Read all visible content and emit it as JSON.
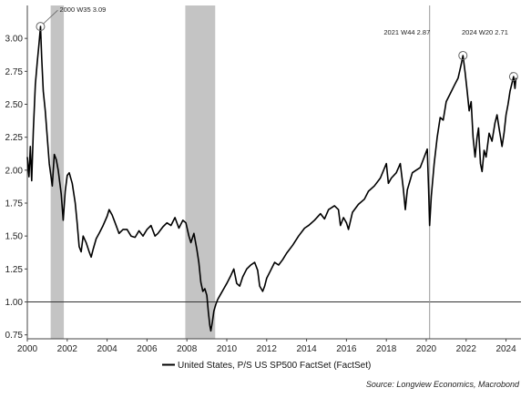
{
  "chart_data": {
    "type": "line",
    "title": "",
    "xlabel": "",
    "ylabel": "",
    "xlim": [
      2000,
      2024.75
    ],
    "ylim": [
      0.72,
      3.25
    ],
    "grid": false,
    "legend_position": "bottom-center",
    "x_ticks": [
      "2000",
      "2002",
      "2004",
      "2006",
      "2008",
      "2010",
      "2012",
      "2014",
      "2016",
      "2018",
      "2020",
      "2022",
      "2024"
    ],
    "y_ticks": [
      "0.75",
      "1.00",
      "1.25",
      "1.50",
      "1.75",
      "2.00",
      "2.25",
      "2.50",
      "2.75",
      "3.00"
    ],
    "reference_line": {
      "y": 1.0
    },
    "recessions": [
      {
        "start": 2001.17,
        "end": 2001.83
      },
      {
        "start": 2007.92,
        "end": 2009.42
      }
    ],
    "event_line": {
      "x": 2020.17
    },
    "series": [
      {
        "name": "United States, P/S US SP500 FactSet (FactSet)",
        "color": "#000000",
        "points": [
          [
            2000.0,
            2.1
          ],
          [
            2000.08,
            1.95
          ],
          [
            2000.15,
            2.18
          ],
          [
            2000.22,
            1.92
          ],
          [
            2000.3,
            2.3
          ],
          [
            2000.4,
            2.65
          ],
          [
            2000.5,
            2.82
          ],
          [
            2000.58,
            2.95
          ],
          [
            2000.66,
            3.09
          ],
          [
            2000.72,
            2.85
          ],
          [
            2000.8,
            2.6
          ],
          [
            2000.9,
            2.45
          ],
          [
            2001.0,
            2.25
          ],
          [
            2001.1,
            2.05
          ],
          [
            2001.25,
            1.88
          ],
          [
            2001.35,
            2.12
          ],
          [
            2001.45,
            2.08
          ],
          [
            2001.55,
            2.0
          ],
          [
            2001.7,
            1.82
          ],
          [
            2001.8,
            1.62
          ],
          [
            2001.9,
            1.84
          ],
          [
            2002.0,
            1.96
          ],
          [
            2002.1,
            1.98
          ],
          [
            2002.25,
            1.9
          ],
          [
            2002.4,
            1.75
          ],
          [
            2002.5,
            1.6
          ],
          [
            2002.6,
            1.42
          ],
          [
            2002.7,
            1.38
          ],
          [
            2002.8,
            1.5
          ],
          [
            2002.95,
            1.45
          ],
          [
            2003.1,
            1.38
          ],
          [
            2003.2,
            1.34
          ],
          [
            2003.3,
            1.4
          ],
          [
            2003.45,
            1.48
          ],
          [
            2003.6,
            1.52
          ],
          [
            2003.8,
            1.58
          ],
          [
            2004.0,
            1.65
          ],
          [
            2004.1,
            1.7
          ],
          [
            2004.25,
            1.66
          ],
          [
            2004.4,
            1.6
          ],
          [
            2004.6,
            1.52
          ],
          [
            2004.8,
            1.55
          ],
          [
            2005.0,
            1.55
          ],
          [
            2005.2,
            1.5
          ],
          [
            2005.4,
            1.49
          ],
          [
            2005.6,
            1.54
          ],
          [
            2005.8,
            1.5
          ],
          [
            2006.0,
            1.55
          ],
          [
            2006.2,
            1.58
          ],
          [
            2006.4,
            1.5
          ],
          [
            2006.55,
            1.52
          ],
          [
            2006.8,
            1.57
          ],
          [
            2007.0,
            1.6
          ],
          [
            2007.2,
            1.58
          ],
          [
            2007.4,
            1.64
          ],
          [
            2007.6,
            1.56
          ],
          [
            2007.8,
            1.62
          ],
          [
            2007.95,
            1.6
          ],
          [
            2008.1,
            1.5
          ],
          [
            2008.2,
            1.45
          ],
          [
            2008.35,
            1.52
          ],
          [
            2008.5,
            1.4
          ],
          [
            2008.6,
            1.3
          ],
          [
            2008.7,
            1.15
          ],
          [
            2008.8,
            1.08
          ],
          [
            2008.9,
            1.1
          ],
          [
            2009.0,
            1.05
          ],
          [
            2009.08,
            0.92
          ],
          [
            2009.15,
            0.82
          ],
          [
            2009.2,
            0.78
          ],
          [
            2009.28,
            0.85
          ],
          [
            2009.35,
            0.93
          ],
          [
            2009.45,
            0.98
          ],
          [
            2009.55,
            1.02
          ],
          [
            2009.7,
            1.06
          ],
          [
            2009.85,
            1.1
          ],
          [
            2010.0,
            1.14
          ],
          [
            2010.2,
            1.2
          ],
          [
            2010.35,
            1.25
          ],
          [
            2010.5,
            1.14
          ],
          [
            2010.65,
            1.12
          ],
          [
            2010.8,
            1.19
          ],
          [
            2011.0,
            1.25
          ],
          [
            2011.2,
            1.28
          ],
          [
            2011.4,
            1.3
          ],
          [
            2011.55,
            1.24
          ],
          [
            2011.65,
            1.12
          ],
          [
            2011.8,
            1.08
          ],
          [
            2011.9,
            1.12
          ],
          [
            2012.0,
            1.18
          ],
          [
            2012.2,
            1.24
          ],
          [
            2012.4,
            1.3
          ],
          [
            2012.6,
            1.28
          ],
          [
            2012.8,
            1.32
          ],
          [
            2013.0,
            1.37
          ],
          [
            2013.3,
            1.43
          ],
          [
            2013.6,
            1.5
          ],
          [
            2013.9,
            1.56
          ],
          [
            2014.1,
            1.58
          ],
          [
            2014.4,
            1.62
          ],
          [
            2014.7,
            1.67
          ],
          [
            2014.9,
            1.63
          ],
          [
            2015.1,
            1.7
          ],
          [
            2015.4,
            1.73
          ],
          [
            2015.6,
            1.7
          ],
          [
            2015.7,
            1.58
          ],
          [
            2015.85,
            1.64
          ],
          [
            2016.0,
            1.6
          ],
          [
            2016.1,
            1.55
          ],
          [
            2016.3,
            1.68
          ],
          [
            2016.6,
            1.74
          ],
          [
            2016.9,
            1.78
          ],
          [
            2017.1,
            1.84
          ],
          [
            2017.4,
            1.88
          ],
          [
            2017.7,
            1.94
          ],
          [
            2018.0,
            2.05
          ],
          [
            2018.1,
            1.9
          ],
          [
            2018.25,
            1.94
          ],
          [
            2018.5,
            1.98
          ],
          [
            2018.7,
            2.05
          ],
          [
            2018.85,
            1.86
          ],
          [
            2018.95,
            1.7
          ],
          [
            2019.05,
            1.85
          ],
          [
            2019.3,
            1.98
          ],
          [
            2019.5,
            2.0
          ],
          [
            2019.7,
            2.02
          ],
          [
            2019.9,
            2.1
          ],
          [
            2020.05,
            2.16
          ],
          [
            2020.12,
            1.85
          ],
          [
            2020.17,
            1.58
          ],
          [
            2020.25,
            1.8
          ],
          [
            2020.4,
            2.05
          ],
          [
            2020.55,
            2.25
          ],
          [
            2020.7,
            2.4
          ],
          [
            2020.85,
            2.38
          ],
          [
            2021.0,
            2.52
          ],
          [
            2021.2,
            2.58
          ],
          [
            2021.4,
            2.64
          ],
          [
            2021.6,
            2.7
          ],
          [
            2021.75,
            2.8
          ],
          [
            2021.84,
            2.87
          ],
          [
            2021.95,
            2.74
          ],
          [
            2022.05,
            2.6
          ],
          [
            2022.15,
            2.45
          ],
          [
            2022.25,
            2.52
          ],
          [
            2022.35,
            2.25
          ],
          [
            2022.45,
            2.1
          ],
          [
            2022.55,
            2.25
          ],
          [
            2022.62,
            2.32
          ],
          [
            2022.72,
            2.05
          ],
          [
            2022.8,
            1.99
          ],
          [
            2022.9,
            2.15
          ],
          [
            2023.0,
            2.1
          ],
          [
            2023.15,
            2.28
          ],
          [
            2023.3,
            2.22
          ],
          [
            2023.45,
            2.36
          ],
          [
            2023.55,
            2.42
          ],
          [
            2023.65,
            2.32
          ],
          [
            2023.8,
            2.18
          ],
          [
            2023.9,
            2.28
          ],
          [
            2024.0,
            2.42
          ],
          [
            2024.1,
            2.5
          ],
          [
            2024.2,
            2.6
          ],
          [
            2024.3,
            2.66
          ],
          [
            2024.38,
            2.71
          ],
          [
            2024.45,
            2.62
          ],
          [
            2024.5,
            2.7
          ]
        ]
      }
    ],
    "annotations": [
      {
        "label": "2000 W35 3.09",
        "x": 2000.66,
        "y": 3.09
      },
      {
        "label": "2021 W44 2.87",
        "x": 2021.84,
        "y": 2.87
      },
      {
        "label": "2024 W20 2.71",
        "x": 2024.38,
        "y": 2.71
      }
    ],
    "source": "Source: Longview Economics, Macrobond"
  }
}
